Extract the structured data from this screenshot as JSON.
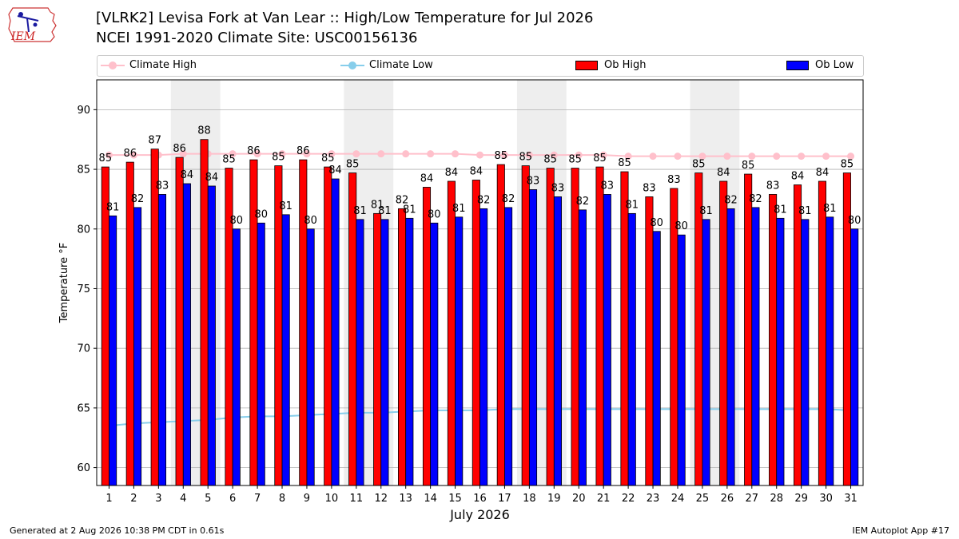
{
  "logo": {
    "text": "IEM"
  },
  "chart_data": {
    "type": "bar",
    "title": "[VLRK2] Levisa Fork at Van Lear :: High/Low Temperature for Jul 2026",
    "subtitle": "NCEI 1991-2020 Climate Site: USC00156136",
    "xlabel": "July 2026",
    "ylabel": "Temperature °F",
    "ylim": [
      58.5,
      92.5
    ],
    "yticks": [
      60,
      65,
      70,
      75,
      80,
      85,
      90
    ],
    "grid": true,
    "legend_placement": "top",
    "categories": [
      "1",
      "2",
      "3",
      "4",
      "5",
      "6",
      "7",
      "8",
      "9",
      "10",
      "11",
      "12",
      "13",
      "14",
      "15",
      "16",
      "17",
      "18",
      "19",
      "20",
      "21",
      "22",
      "23",
      "24",
      "25",
      "26",
      "27",
      "28",
      "29",
      "30",
      "31"
    ],
    "weekend_shading_days": [
      [
        4,
        5
      ],
      [
        11,
        12
      ],
      [
        18,
        19
      ],
      [
        25,
        26
      ]
    ],
    "series": [
      {
        "name": "Ob High",
        "kind": "bar",
        "color": "#ff0000",
        "values": [
          85,
          86,
          87,
          86,
          88,
          85,
          86,
          85,
          86,
          85,
          85,
          81,
          82,
          84,
          84,
          84,
          85,
          85,
          85,
          85,
          85,
          85,
          83,
          83,
          85,
          84,
          85,
          83,
          84,
          84,
          85
        ],
        "plotted": [
          85.2,
          85.6,
          86.7,
          86.0,
          87.5,
          85.1,
          85.8,
          85.3,
          85.8,
          85.2,
          84.7,
          81.3,
          81.7,
          83.5,
          84.0,
          84.1,
          85.4,
          85.3,
          85.1,
          85.1,
          85.2,
          84.8,
          82.7,
          83.4,
          84.7,
          84.0,
          84.6,
          82.9,
          83.7,
          84.0,
          84.7
        ]
      },
      {
        "name": "Ob Low",
        "kind": "bar",
        "color": "#0000ff",
        "values": [
          81,
          82,
          83,
          84,
          84,
          80,
          80,
          81,
          80,
          84,
          81,
          81,
          81,
          80,
          81,
          82,
          82,
          83,
          83,
          82,
          83,
          81,
          80,
          80,
          81,
          82,
          82,
          81,
          81,
          81,
          80
        ],
        "plotted": [
          81.1,
          81.8,
          82.9,
          83.8,
          83.6,
          80.0,
          80.5,
          81.2,
          80.0,
          84.2,
          80.8,
          80.8,
          80.9,
          80.5,
          81.0,
          81.7,
          81.8,
          83.3,
          82.7,
          81.6,
          82.9,
          81.3,
          79.8,
          79.5,
          80.8,
          81.7,
          81.8,
          80.9,
          80.8,
          81.0,
          80.0
        ]
      },
      {
        "name": "Climate High",
        "kind": "line",
        "color": "#ffc0cb",
        "values": [
          86.2,
          86.2,
          86.2,
          86.3,
          86.3,
          86.3,
          86.3,
          86.3,
          86.3,
          86.3,
          86.3,
          86.3,
          86.3,
          86.3,
          86.3,
          86.2,
          86.2,
          86.2,
          86.2,
          86.2,
          86.2,
          86.1,
          86.1,
          86.1,
          86.1,
          86.1,
          86.1,
          86.1,
          86.1,
          86.1,
          86.1
        ]
      },
      {
        "name": "Climate Low",
        "kind": "line",
        "color": "#87ceeb",
        "values": [
          63.5,
          63.7,
          63.8,
          63.9,
          64.0,
          64.2,
          64.3,
          64.3,
          64.4,
          64.5,
          64.6,
          64.6,
          64.7,
          64.8,
          64.8,
          64.8,
          64.9,
          64.9,
          64.9,
          64.9,
          64.9,
          64.9,
          64.9,
          64.9,
          64.9,
          64.9,
          64.9,
          64.9,
          64.9,
          64.9,
          64.8
        ]
      }
    ]
  },
  "footer": {
    "generated": "Generated at 2 Aug 2026 10:38 PM CDT in 0.61s",
    "app": "IEM Autoplot App #17"
  }
}
